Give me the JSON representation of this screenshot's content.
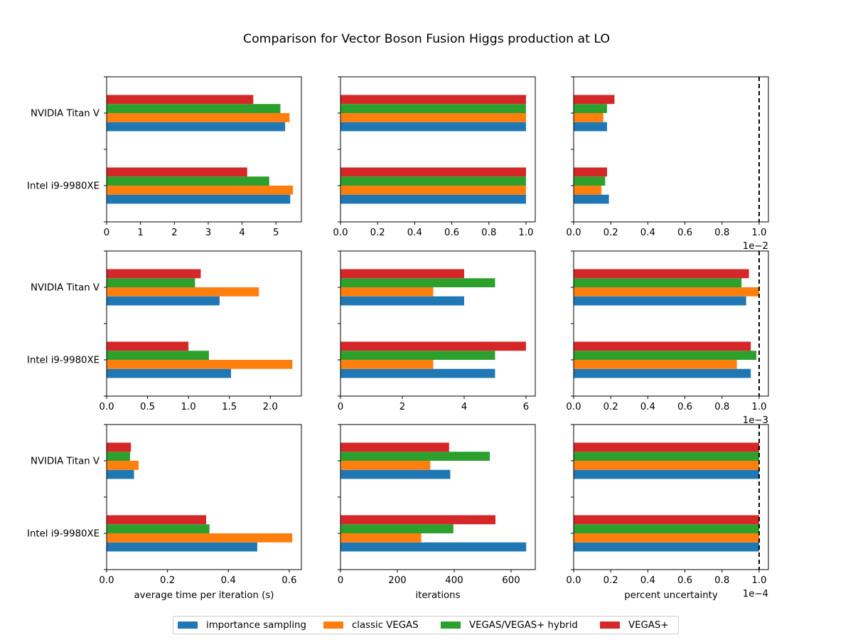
{
  "figure_title": "Comparison for Vector Boson Fusion Higgs production at LO",
  "colors": {
    "importance sampling": "#1f77b4",
    "classic VEGAS": "#ff7f0e",
    "VEGAS/VEGAS+ hybrid": "#2ca02c",
    "VEGAS+": "#d62728"
  },
  "legend": [
    {
      "label": "importance sampling",
      "color": "#1f77b4"
    },
    {
      "label": "classic VEGAS",
      "color": "#ff7f0e"
    },
    {
      "label": "VEGAS/VEGAS+ hybrid",
      "color": "#2ca02c"
    },
    {
      "label": "VEGAS+",
      "color": "#d62728"
    }
  ],
  "chart_data": [
    {
      "type": "bar",
      "orientation": "horizontal",
      "categories": [
        "Intel i9-9980XE",
        "NVIDIA Titan V"
      ],
      "xlim": [
        0,
        5.75
      ],
      "xticks": [
        0,
        1,
        2,
        3,
        4,
        5
      ],
      "xtick_labels": [
        "0",
        "1",
        "2",
        "3",
        "4",
        "5"
      ],
      "xlabel": "",
      "offset_text": "",
      "series": [
        {
          "name": "importance sampling",
          "values": [
            5.42,
            5.27
          ]
        },
        {
          "name": "classic VEGAS",
          "values": [
            5.5,
            5.4
          ]
        },
        {
          "name": "VEGAS/VEGAS+ hybrid",
          "values": [
            4.8,
            5.13
          ]
        },
        {
          "name": "VEGAS+",
          "values": [
            4.15,
            4.33
          ]
        }
      ]
    },
    {
      "type": "bar",
      "orientation": "horizontal",
      "categories": [
        "Intel i9-9980XE",
        "NVIDIA Titan V"
      ],
      "xlim": [
        0,
        1.05
      ],
      "xticks": [
        0,
        0.2,
        0.4,
        0.6,
        0.8,
        1.0
      ],
      "xtick_labels": [
        "0.0",
        "0.2",
        "0.4",
        "0.6",
        "0.8",
        "1.0"
      ],
      "xlabel": "",
      "offset_text": "",
      "series": [
        {
          "name": "importance sampling",
          "values": [
            1,
            1
          ]
        },
        {
          "name": "classic VEGAS",
          "values": [
            1,
            1
          ]
        },
        {
          "name": "VEGAS/VEGAS+ hybrid",
          "values": [
            1,
            1
          ]
        },
        {
          "name": "VEGAS+",
          "values": [
            1,
            1
          ]
        }
      ]
    },
    {
      "type": "bar",
      "orientation": "horizontal",
      "categories": [
        "Intel i9-9980XE",
        "NVIDIA Titan V"
      ],
      "xlim": [
        0,
        1.05
      ],
      "xticks": [
        0,
        0.2,
        0.4,
        0.6,
        0.8,
        1.0
      ],
      "xtick_labels": [
        "0.0",
        "0.2",
        "0.4",
        "0.6",
        "0.8",
        "1.0"
      ],
      "xlabel": "",
      "offset_text": "1e−2",
      "vline": 1.0,
      "series": [
        {
          "name": "importance sampling",
          "values": [
            0.19,
            0.18
          ]
        },
        {
          "name": "classic VEGAS",
          "values": [
            0.15,
            0.16
          ]
        },
        {
          "name": "VEGAS/VEGAS+ hybrid",
          "values": [
            0.17,
            0.18
          ]
        },
        {
          "name": "VEGAS+",
          "values": [
            0.18,
            0.22
          ]
        }
      ]
    },
    {
      "type": "bar",
      "orientation": "horizontal",
      "categories": [
        "Intel i9-9980XE",
        "NVIDIA Titan V"
      ],
      "xlim": [
        0,
        2.38
      ],
      "xticks": [
        0,
        0.5,
        1.0,
        1.5,
        2.0
      ],
      "xtick_labels": [
        "0.0",
        "0.5",
        "1.0",
        "1.5",
        "2.0"
      ],
      "xlabel": "",
      "offset_text": "",
      "series": [
        {
          "name": "importance sampling",
          "values": [
            1.52,
            1.38
          ]
        },
        {
          "name": "classic VEGAS",
          "values": [
            2.27,
            1.86
          ]
        },
        {
          "name": "VEGAS/VEGAS+ hybrid",
          "values": [
            1.25,
            1.08
          ]
        },
        {
          "name": "VEGAS+",
          "values": [
            1.0,
            1.15
          ]
        }
      ]
    },
    {
      "type": "bar",
      "orientation": "horizontal",
      "categories": [
        "Intel i9-9980XE",
        "NVIDIA Titan V"
      ],
      "xlim": [
        0,
        6.3
      ],
      "xticks": [
        0,
        2,
        4,
        6
      ],
      "xtick_labels": [
        "0",
        "2",
        "4",
        "6"
      ],
      "xlabel": "",
      "offset_text": "",
      "series": [
        {
          "name": "importance sampling",
          "values": [
            5,
            4
          ]
        },
        {
          "name": "classic VEGAS",
          "values": [
            3,
            3
          ]
        },
        {
          "name": "VEGAS/VEGAS+ hybrid",
          "values": [
            5,
            5
          ]
        },
        {
          "name": "VEGAS+",
          "values": [
            6,
            4
          ]
        }
      ]
    },
    {
      "type": "bar",
      "orientation": "horizontal",
      "categories": [
        "Intel i9-9980XE",
        "NVIDIA Titan V"
      ],
      "xlim": [
        0,
        1.05
      ],
      "xticks": [
        0,
        0.2,
        0.4,
        0.6,
        0.8,
        1.0
      ],
      "xtick_labels": [
        "0.0",
        "0.2",
        "0.4",
        "0.6",
        "0.8",
        "1.0"
      ],
      "xlabel": "",
      "offset_text": "1e−3",
      "vline": 1.0,
      "series": [
        {
          "name": "importance sampling",
          "values": [
            0.955,
            0.93
          ]
        },
        {
          "name": "classic VEGAS",
          "values": [
            0.88,
            1.0
          ]
        },
        {
          "name": "VEGAS/VEGAS+ hybrid",
          "values": [
            0.985,
            0.905
          ]
        },
        {
          "name": "VEGAS+",
          "values": [
            0.955,
            0.945
          ]
        }
      ]
    },
    {
      "type": "bar",
      "orientation": "horizontal",
      "categories": [
        "Intel i9-9980XE",
        "NVIDIA Titan V"
      ],
      "xlim": [
        0,
        0.64
      ],
      "xticks": [
        0,
        0.2,
        0.4,
        0.6
      ],
      "xtick_labels": [
        "0.0",
        "0.2",
        "0.4",
        "0.6"
      ],
      "xlabel": "average time per iteration (s)",
      "offset_text": "",
      "series": [
        {
          "name": "importance sampling",
          "values": [
            0.495,
            0.09
          ]
        },
        {
          "name": "classic VEGAS",
          "values": [
            0.61,
            0.105
          ]
        },
        {
          "name": "VEGAS/VEGAS+ hybrid",
          "values": [
            0.338,
            0.077
          ]
        },
        {
          "name": "VEGAS+",
          "values": [
            0.327,
            0.08
          ]
        }
      ]
    },
    {
      "type": "bar",
      "orientation": "horizontal",
      "categories": [
        "Intel i9-9980XE",
        "NVIDIA Titan V"
      ],
      "xlim": [
        0,
        685
      ],
      "xticks": [
        0,
        200,
        400,
        600
      ],
      "xtick_labels": [
        "0",
        "200",
        "400",
        "600"
      ],
      "xlabel": "iterations",
      "offset_text": "",
      "series": [
        {
          "name": "importance sampling",
          "values": [
            653,
            386
          ]
        },
        {
          "name": "classic VEGAS",
          "values": [
            284,
            316
          ]
        },
        {
          "name": "VEGAS/VEGAS+ hybrid",
          "values": [
            397,
            525
          ]
        },
        {
          "name": "VEGAS+",
          "values": [
            545,
            382
          ]
        }
      ]
    },
    {
      "type": "bar",
      "orientation": "horizontal",
      "categories": [
        "Intel i9-9980XE",
        "NVIDIA Titan V"
      ],
      "xlim": [
        0,
        1.05
      ],
      "xticks": [
        0,
        0.2,
        0.4,
        0.6,
        0.8,
        1.0
      ],
      "xtick_labels": [
        "0.0",
        "0.2",
        "0.4",
        "0.6",
        "0.8",
        "1.0"
      ],
      "xlabel": "percent uncertainty",
      "offset_text": "1e−4",
      "vline": 1.0,
      "series": [
        {
          "name": "importance sampling",
          "values": [
            1.0,
            1.0
          ]
        },
        {
          "name": "classic VEGAS",
          "values": [
            1.0,
            1.0
          ]
        },
        {
          "name": "VEGAS/VEGAS+ hybrid",
          "values": [
            1.0,
            1.0
          ]
        },
        {
          "name": "VEGAS+",
          "values": [
            1.0,
            1.0
          ]
        }
      ]
    }
  ]
}
